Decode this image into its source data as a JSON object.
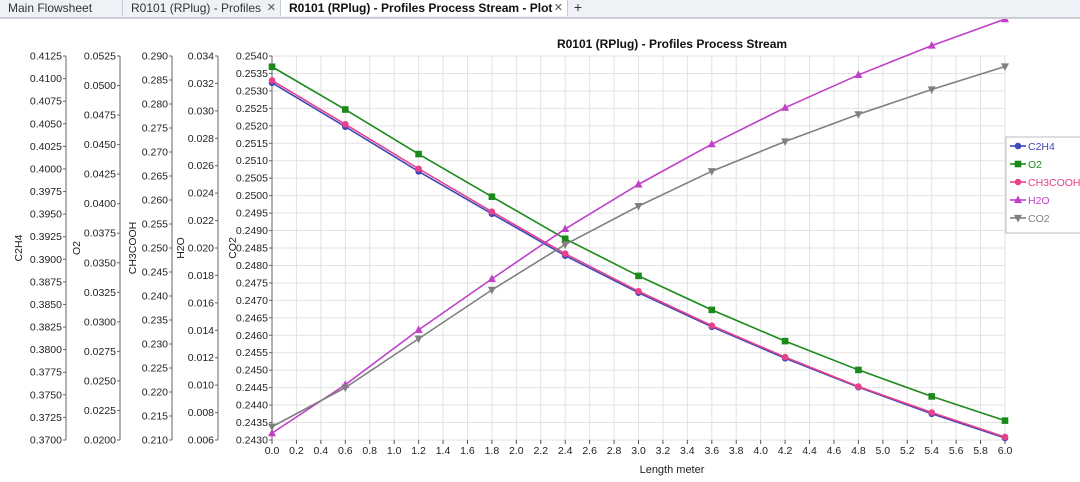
{
  "tabs": [
    {
      "label": "Main Flowsheet",
      "active": false,
      "closable": false
    },
    {
      "label": "R0101 (RPlug) - Profiles",
      "active": false,
      "closable": true
    },
    {
      "label": "R0101 (RPlug) - Profiles Process Stream - Plot",
      "active": true,
      "closable": true
    }
  ],
  "add_tab_label": "+",
  "close_glyph": "✕",
  "chart_data": {
    "type": "line",
    "title": "R0101 (RPlug) - Profiles Process Stream",
    "xlabel": "Length meter",
    "xlim": [
      0.0,
      6.0
    ],
    "x_ticks": [
      "0.0",
      "0.2",
      "0.4",
      "0.6",
      "0.8",
      "1.0",
      "1.2",
      "1.4",
      "1.6",
      "1.8",
      "2.0",
      "2.2",
      "2.4",
      "2.6",
      "2.8",
      "3.0",
      "3.2",
      "3.4",
      "3.6",
      "3.8",
      "4.0",
      "4.2",
      "4.4",
      "4.6",
      "4.8",
      "5.0",
      "5.2",
      "5.4",
      "5.6",
      "5.8",
      "6.0"
    ],
    "grid": true,
    "legend_position": "right",
    "x": [
      0.0,
      0.6,
      1.2,
      1.8,
      2.4,
      3.0,
      3.6,
      4.2,
      4.8,
      5.4,
      6.0
    ],
    "axes": [
      {
        "label": "C2H4",
        "ylim": [
          0.37,
          0.4125
        ],
        "ticks": [
          "0.3700",
          "0.3725",
          "0.3750",
          "0.3775",
          "0.3800",
          "0.3825",
          "0.3850",
          "0.3875",
          "0.3900",
          "0.3925",
          "0.3950",
          "0.3975",
          "0.4000",
          "0.4025",
          "0.4050",
          "0.4075",
          "0.4100",
          "0.4125"
        ]
      },
      {
        "label": "O2",
        "ylim": [
          0.02,
          0.0525
        ],
        "ticks": [
          "0.0200",
          "0.0225",
          "0.0250",
          "0.0275",
          "0.0300",
          "0.0325",
          "0.0350",
          "0.0375",
          "0.0400",
          "0.0425",
          "0.0450",
          "0.0475",
          "0.0500",
          "0.0525"
        ]
      },
      {
        "label": "CH3COOH",
        "ylim": [
          0.21,
          0.29
        ],
        "ticks": [
          "0.210",
          "0.215",
          "0.220",
          "0.225",
          "0.230",
          "0.235",
          "0.240",
          "0.245",
          "0.250",
          "0.255",
          "0.260",
          "0.265",
          "0.270",
          "0.275",
          "0.280",
          "0.285",
          "0.290"
        ]
      },
      {
        "label": "H2O",
        "ylim": [
          0.006,
          0.034
        ],
        "ticks": [
          "0.006",
          "0.008",
          "0.010",
          "0.012",
          "0.014",
          "0.016",
          "0.018",
          "0.020",
          "0.022",
          "0.024",
          "0.026",
          "0.028",
          "0.030",
          "0.032",
          "0.034"
        ]
      },
      {
        "label": "CO2",
        "ylim": [
          0.243,
          0.254
        ],
        "ticks": [
          "0.2430",
          "0.2435",
          "0.2440",
          "0.2445",
          "0.2450",
          "0.2455",
          "0.2460",
          "0.2465",
          "0.2470",
          "0.2475",
          "0.2480",
          "0.2485",
          "0.2490",
          "0.2495",
          "0.2500",
          "0.2505",
          "0.2510",
          "0.2515",
          "0.2520",
          "0.2525",
          "0.2530",
          "0.2535",
          "0.2540"
        ]
      }
    ],
    "series": [
      {
        "name": "C2H4",
        "axis": 0,
        "color": "#3f48b8",
        "marker": "circle",
        "values": [
          0.40953,
          0.40467,
          0.39973,
          0.39504,
          0.3904,
          0.3863,
          0.38253,
          0.37905,
          0.37585,
          0.3729,
          0.37022
        ]
      },
      {
        "name": "O2",
        "axis": 1,
        "color": "#1b8a1b",
        "marker": "square",
        "values": [
          0.05159,
          0.04797,
          0.0442,
          0.04059,
          0.03703,
          0.03389,
          0.03101,
          0.02837,
          0.02593,
          0.02369,
          0.02164
        ]
      },
      {
        "name": "CH3COOH",
        "axis": 2,
        "color": "#e8408a",
        "marker": "circle",
        "values": [
          0.2849,
          0.27578,
          0.26651,
          0.25757,
          0.24881,
          0.24099,
          0.23383,
          0.22728,
          0.22114,
          0.21572,
          0.21063
        ]
      },
      {
        "name": "H2O",
        "axis": 3,
        "color": "#c040c8",
        "marker": "triangle",
        "values": [
          0.0065,
          0.01003,
          0.01403,
          0.01775,
          0.02139,
          0.02464,
          0.02757,
          0.03023,
          0.03262,
          0.03476,
          0.03669
        ]
      },
      {
        "name": "CO2",
        "axis": 4,
        "color": "#808080",
        "marker": "triangle-down",
        "values": [
          0.24338,
          0.2445,
          0.2459,
          0.2473,
          0.2486,
          0.2497,
          0.2507,
          0.25155,
          0.25233,
          0.25304,
          0.2537
        ]
      }
    ]
  }
}
